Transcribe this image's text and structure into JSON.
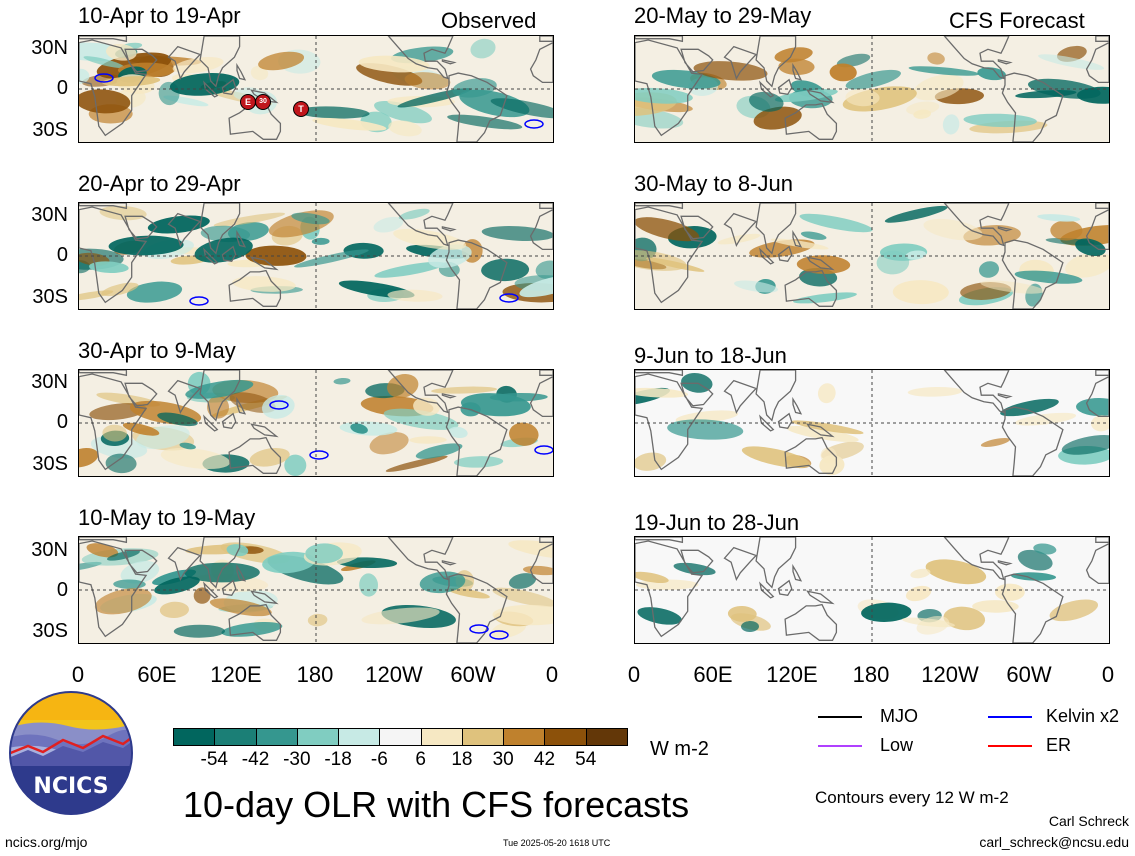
{
  "observed_label": "Observed",
  "forecast_label": "CFS Forecast",
  "panels": {
    "obs": [
      {
        "title": "10-Apr to 19-Apr"
      },
      {
        "title": "20-Apr to 29-Apr"
      },
      {
        "title": "30-Apr to 9-May"
      },
      {
        "title": "10-May to 19-May"
      }
    ],
    "fc": [
      {
        "title": "20-May to 29-May"
      },
      {
        "title": "30-May to 8-Jun"
      },
      {
        "title": "9-Jun to 18-Jun"
      },
      {
        "title": "19-Jun to 28-Jun"
      }
    ]
  },
  "lat_labels": [
    "30N",
    "0",
    "30S"
  ],
  "lon_labels": [
    "0",
    "60E",
    "120E",
    "180",
    "120W",
    "60W",
    "0"
  ],
  "storm_markers": [
    "E",
    "30",
    "T"
  ],
  "colorbar": {
    "labels": [
      "-54",
      "-42",
      "-30",
      "-18",
      "-6",
      "6",
      "18",
      "30",
      "42",
      "54"
    ],
    "unit": "W m-2",
    "colors": [
      "#01665e",
      "#1b7f76",
      "#35978f",
      "#80cdc1",
      "#c7eae5",
      "#f5f5f5",
      "#f6e8c3",
      "#dfc27d",
      "#bf812d",
      "#8c510a",
      "#633708"
    ]
  },
  "legend": {
    "mjo": "MJO",
    "kelvin": "Kelvin x2",
    "low": "Low",
    "er": "ER",
    "colors": {
      "mjo": "#000000",
      "kelvin": "#0000ff",
      "low": "#b040ff",
      "er": "#ff0000"
    }
  },
  "contour_note": "Contours every 12 W m-2",
  "main_title": "10-day OLR with CFS forecasts",
  "logo_text": "NCICS",
  "footer": {
    "site": "ncics.org/mjo",
    "timestamp": "Tue 2025-05-20 1618 UTC",
    "author": "Carl Schreck",
    "email": "carl_schreck@ncsu.edu"
  }
}
